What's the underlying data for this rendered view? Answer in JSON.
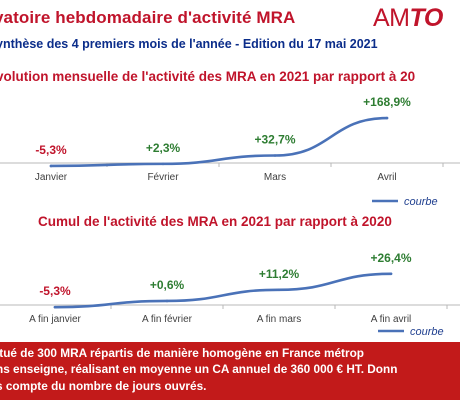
{
  "header": {
    "title": "vatoire hebdomadaire d'activité MRA",
    "logo_am": "AM",
    "logo_to": "TO",
    "subtitle": "ynthèse des 4 premiers mois de l'année - Edition du 17 mai 2021"
  },
  "colors": {
    "title_red": "#c0142b",
    "subtitle_blue": "#0b2d8a",
    "line_blue": "#4a72b8",
    "value_green": "#2e7d32",
    "value_red": "#c0142b",
    "footer_bg": "#c21a1a"
  },
  "chart_data": [
    {
      "type": "line",
      "title": "volution mensuelle de l'activité des MRA en 2021 par rapport à 20",
      "categories": [
        "Janvier",
        "Février",
        "Mars",
        "Avril"
      ],
      "series": [
        {
          "name": "courbe",
          "values": [
            -5.3,
            2.3,
            32.7,
            168.9
          ]
        }
      ],
      "data_labels": [
        "-5,3%",
        "+2,3%",
        "+32,7%",
        "+168,9%"
      ],
      "legend": "courbe",
      "legend_position": "bottom-right",
      "grid": false,
      "ylim": [
        -20,
        180
      ]
    },
    {
      "type": "line",
      "title": "Cumul de l'activité  des MRA en 2021 par rapport à 2020",
      "categories": [
        "A fin janvier",
        "A fin février",
        "A fin mars",
        "A fin avril"
      ],
      "series": [
        {
          "name": "courbe",
          "values": [
            -5.3,
            0.6,
            11.2,
            26.4
          ]
        }
      ],
      "data_labels": [
        "-5,3%",
        "+0,6%",
        "+11,2%",
        "+26,4%"
      ],
      "legend": "courbe",
      "legend_position": "bottom-right",
      "grid": false,
      "ylim": [
        -8,
        30
      ]
    }
  ],
  "footer": {
    "line1": "itué de 300 MRA répartis de manière homogène en France métrop",
    "line2": "ns enseigne, réalisant en moyenne un CA annuel de 360 000 € HT. Donn",
    "line3": "s compte du nombre de jours ouvrés."
  }
}
